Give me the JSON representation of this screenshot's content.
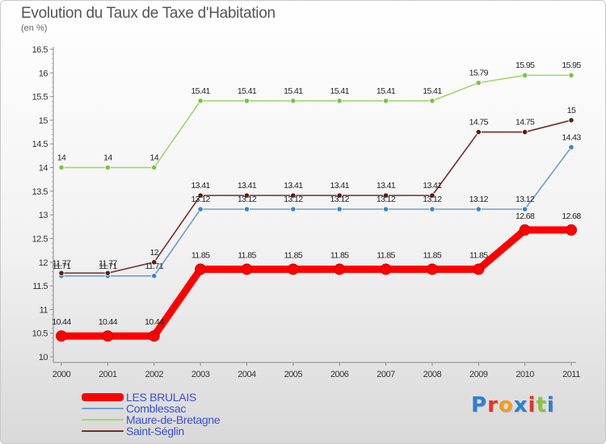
{
  "header": {
    "title": "Evolution du Taux de Taxe d'Habitation",
    "subtitle": "(en %)"
  },
  "logo": {
    "letters": [
      {
        "ch": "P",
        "color": "#2f7fd0"
      },
      {
        "ch": "r",
        "color": "#e0372a"
      },
      {
        "ch": "o",
        "color": "#f29c1e"
      },
      {
        "ch": "x",
        "color": "#2f7fd0"
      },
      {
        "ch": "i",
        "color": "#e0372a"
      },
      {
        "ch": "t",
        "color": "#8cc43c"
      },
      {
        "ch": "i",
        "color": "#2f7fd0"
      }
    ]
  },
  "chart_data": {
    "type": "line",
    "title": "Evolution du Taux de Taxe d'Habitation",
    "ylabel": "(en %)",
    "xlabel": "",
    "x": [
      "2000",
      "2001",
      "2002",
      "2003",
      "2004",
      "2005",
      "2006",
      "2007",
      "2008",
      "2009",
      "2010",
      "2011"
    ],
    "ylim": [
      10,
      16.5
    ],
    "yticks": [
      "10",
      "10.5",
      "11",
      "11.5",
      "12",
      "12.5",
      "13",
      "13.5",
      "14",
      "14.5",
      "15",
      "15.5",
      "16",
      "16.5"
    ],
    "grid": false,
    "legend_position": "bottom-left",
    "series": [
      {
        "name": "LES BRULAIS",
        "color": "#ff0000",
        "values": [
          10.44,
          10.44,
          10.44,
          11.85,
          11.85,
          11.85,
          11.85,
          11.85,
          11.85,
          11.85,
          12.68,
          12.68
        ],
        "labels": [
          "10.44",
          "10.44",
          "10.44",
          "11.85",
          "11.85",
          "11.85",
          "11.85",
          "11.85",
          "11.85",
          "11.85",
          "12.68",
          "12.68"
        ]
      },
      {
        "name": "Comblessac",
        "color": "#6f9fcf",
        "marker": "#3a86c8",
        "values": [
          11.71,
          11.71,
          11.71,
          13.12,
          13.12,
          13.12,
          13.12,
          13.12,
          13.12,
          13.12,
          13.12,
          14.43
        ],
        "labels": [
          "11.71",
          "11.71",
          "11.71",
          "13.12",
          "13.12",
          "13.12",
          "13.12",
          "13.12",
          "13.12",
          "13.12",
          "13.12",
          "14.43"
        ]
      },
      {
        "name": "Maure-de-Bretagne",
        "color": "#9ed86a",
        "marker": "#7cc242",
        "values": [
          14,
          14,
          14,
          15.41,
          15.41,
          15.41,
          15.41,
          15.41,
          15.41,
          15.79,
          15.95,
          15.95
        ],
        "labels": [
          "14",
          "14",
          "14",
          "15.41",
          "15.41",
          "15.41",
          "15.41",
          "15.41",
          "15.41",
          "15.79",
          "15.95",
          "15.95"
        ]
      },
      {
        "name": "Saint-Séglin",
        "color": "#7a2a2a",
        "marker": "#5e1a1a",
        "values": [
          11.77,
          11.77,
          12,
          13.41,
          13.41,
          13.41,
          13.41,
          13.41,
          13.41,
          14.75,
          14.75,
          15
        ],
        "labels": [
          "11.77",
          "11.77",
          "12",
          "13.41",
          "13.41",
          "13.41",
          "13.41",
          "13.41",
          "13.41",
          "14.75",
          "14.75",
          "15"
        ]
      }
    ]
  }
}
